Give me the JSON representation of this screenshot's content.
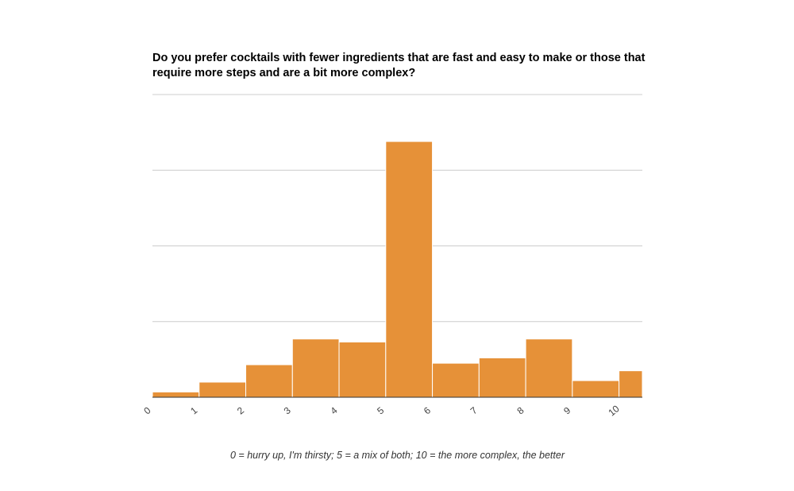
{
  "chart_data": {
    "type": "bar",
    "title": "Do you prefer cocktails with fewer ingredients that are fast and easy to make or those that require more steps and are a bit more complex?",
    "xlabel": "0 = hurry up, I'm thirsty; 5 = a mix of both; 10 = the more complex, the better",
    "ylabel": "",
    "tick_labels": [
      "0",
      "1",
      "2",
      "3",
      "4",
      "5",
      "6",
      "7",
      "8",
      "9",
      "10"
    ],
    "bins": [
      {
        "from": 0,
        "to": 1,
        "value": 0.07
      },
      {
        "from": 1,
        "to": 2,
        "value": 0.2
      },
      {
        "from": 2,
        "to": 3,
        "value": 0.43
      },
      {
        "from": 3,
        "to": 4,
        "value": 0.77
      },
      {
        "from": 4,
        "to": 5,
        "value": 0.73
      },
      {
        "from": 5,
        "to": 6,
        "value": 3.38
      },
      {
        "from": 6,
        "to": 7,
        "value": 0.45
      },
      {
        "from": 7,
        "to": 8,
        "value": 0.52
      },
      {
        "from": 8,
        "to": 9,
        "value": 0.77
      },
      {
        "from": 9,
        "to": 10,
        "value": 0.22
      },
      {
        "from": 10,
        "to": 10.5,
        "value": 0.35
      }
    ],
    "xlim": [
      0,
      10.5
    ],
    "ylim": [
      0,
      4
    ],
    "grid": true,
    "bar_color": "#e69138",
    "grid_color": "#cccccc"
  }
}
